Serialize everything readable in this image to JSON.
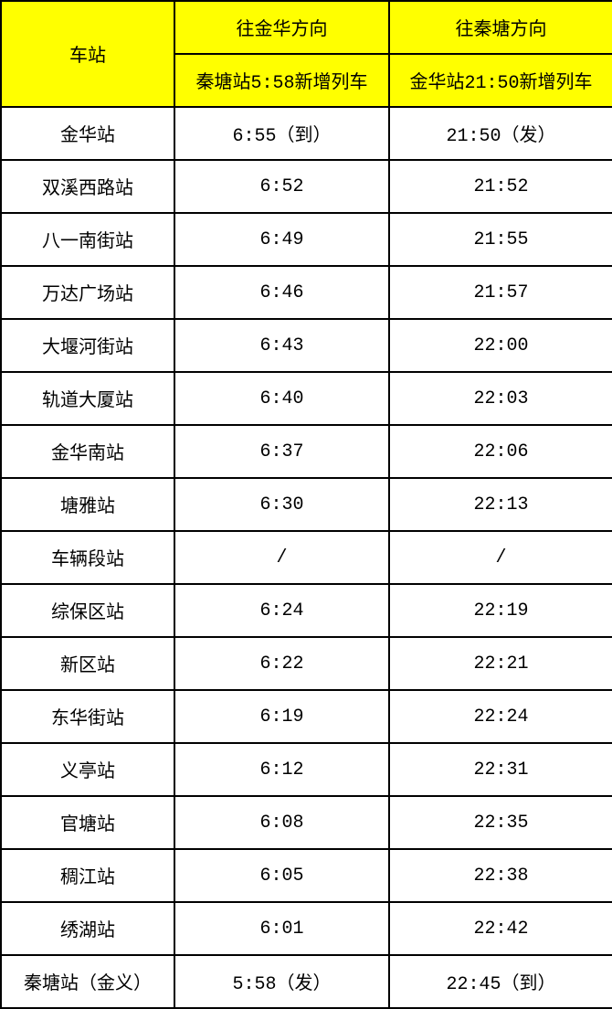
{
  "header": {
    "station": "车站",
    "dir_jinhua": "往金华方向",
    "dir_qintang": "往秦塘方向",
    "sub_jinhua": "秦塘站5:58新增列车",
    "sub_qintang": "金华站21:50新增列车"
  },
  "colors": {
    "header_bg": "#ffff00",
    "border": "#000000"
  },
  "rows": [
    {
      "station": "金华站",
      "to_jinhua": "6:55（到）",
      "to_qintang": "21:50（发）"
    },
    {
      "station": "双溪西路站",
      "to_jinhua": "6:52",
      "to_qintang": "21:52"
    },
    {
      "station": "八一南街站",
      "to_jinhua": "6:49",
      "to_qintang": "21:55"
    },
    {
      "station": "万达广场站",
      "to_jinhua": "6:46",
      "to_qintang": "21:57"
    },
    {
      "station": "大堰河街站",
      "to_jinhua": "6:43",
      "to_qintang": "22:00"
    },
    {
      "station": "轨道大厦站",
      "to_jinhua": "6:40",
      "to_qintang": "22:03"
    },
    {
      "station": "金华南站",
      "to_jinhua": "6:37",
      "to_qintang": "22:06"
    },
    {
      "station": "塘雅站",
      "to_jinhua": "6:30",
      "to_qintang": "22:13"
    },
    {
      "station": "车辆段站",
      "to_jinhua": "/",
      "to_qintang": "/"
    },
    {
      "station": "综保区站",
      "to_jinhua": "6:24",
      "to_qintang": "22:19"
    },
    {
      "station": "新区站",
      "to_jinhua": "6:22",
      "to_qintang": "22:21"
    },
    {
      "station": "东华街站",
      "to_jinhua": "6:19",
      "to_qintang": "22:24"
    },
    {
      "station": "义亭站",
      "to_jinhua": "6:12",
      "to_qintang": "22:31"
    },
    {
      "station": "官塘站",
      "to_jinhua": "6:08",
      "to_qintang": "22:35"
    },
    {
      "station": "稠江站",
      "to_jinhua": "6:05",
      "to_qintang": "22:38"
    },
    {
      "station": "绣湖站",
      "to_jinhua": "6:01",
      "to_qintang": "22:42"
    },
    {
      "station": "秦塘站（金义）",
      "to_jinhua": "5:58（发）",
      "to_qintang": "22:45（到）"
    }
  ]
}
